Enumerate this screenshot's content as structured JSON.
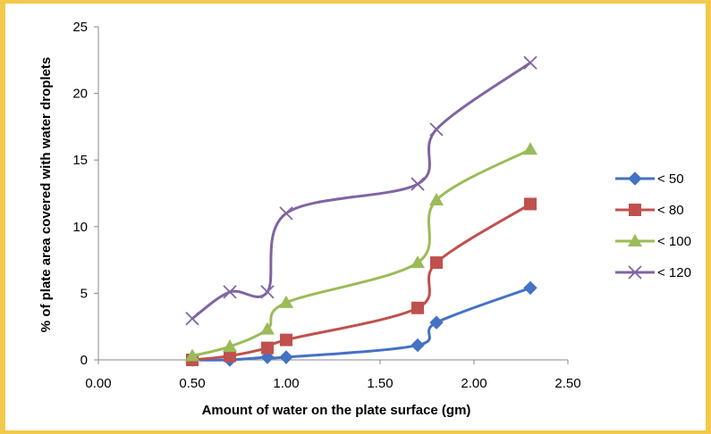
{
  "chart_data": {
    "type": "line",
    "title": "",
    "xlabel": "Amount of water on the plate surface (gm)",
    "ylabel": "% of plate area covered with water droplets",
    "xlim": [
      0,
      2.5
    ],
    "ylim": [
      0,
      25
    ],
    "x_ticks": [
      "0.00",
      "0.50",
      "1.00",
      "1.50",
      "2.00",
      "2.50"
    ],
    "y_ticks": [
      "0",
      "5",
      "10",
      "15",
      "20",
      "25"
    ],
    "grid": false,
    "smooth": true,
    "legend_position": "right",
    "x": [
      0.5,
      0.7,
      0.9,
      1.0,
      1.7,
      1.8,
      2.3
    ],
    "series": [
      {
        "name": "< 50",
        "color": "#4472c4",
        "marker": "diamond",
        "values": [
          0.0,
          0.0,
          0.2,
          0.2,
          1.1,
          2.8,
          5.4
        ]
      },
      {
        "name": "< 80",
        "color": "#c0504d",
        "marker": "square",
        "values": [
          0.0,
          0.3,
          0.9,
          1.5,
          3.9,
          7.3,
          11.7
        ]
      },
      {
        "name": "< 100",
        "color": "#9bbb59",
        "marker": "triangle",
        "values": [
          0.3,
          1.0,
          2.3,
          4.3,
          7.3,
          12.0,
          15.8
        ]
      },
      {
        "name": "< 120",
        "color": "#8064a2",
        "marker": "x",
        "values": [
          3.1,
          5.1,
          5.1,
          11.0,
          13.2,
          17.3,
          22.3
        ]
      }
    ]
  }
}
